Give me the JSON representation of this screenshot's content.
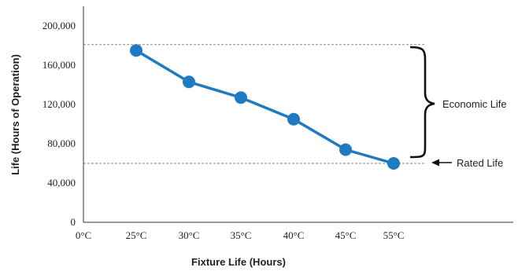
{
  "chart_data": {
    "type": "line",
    "title": "",
    "xlabel": "Fixture Life (Hours)",
    "ylabel": "Life (Hours of Operation)",
    "categories": [
      "0°C",
      "25°C",
      "30°C",
      "35°C",
      "40°C",
      "45°C",
      "55°C"
    ],
    "yticks": [
      "0",
      "40,000",
      "80,000",
      "120,000",
      "160,000",
      "200,000"
    ],
    "ytick_values": [
      0,
      40000,
      80000,
      120000,
      160000,
      200000
    ],
    "ylim": [
      0,
      200000
    ],
    "series": [
      {
        "x": [
          "25°C",
          "30°C",
          "35°C",
          "40°C",
          "45°C",
          "55°C"
        ],
        "values": [
          175000,
          143000,
          127000,
          105000,
          74000,
          60000
        ],
        "color": "#1f7bc1"
      }
    ],
    "reference_lines": [
      {
        "value": 181000,
        "style": "dashed"
      },
      {
        "value": 60000,
        "style": "dashed"
      }
    ],
    "annotations": {
      "economic_life": "Economic Life",
      "rated_life": "Rated Life"
    },
    "grid": false,
    "legend": "none"
  }
}
